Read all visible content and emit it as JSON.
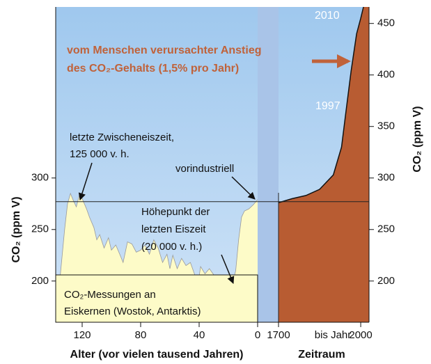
{
  "chart_data": {
    "type": "line",
    "xlabel": "Alter (vor vielen tausend Jahren)",
    "x2label": "Zeitraum",
    "x2_middle_label": "bis Jahr",
    "ylabel": "CO₂ (ppm V)",
    "y2label": "CO₂ (ppm V)",
    "xlim": [
      140,
      0
    ],
    "xticks": [
      120,
      80,
      40,
      0
    ],
    "x2lim": [
      1700,
      2010
    ],
    "x2ticks": [
      1700,
      2000
    ],
    "ylim": [
      160,
      466
    ],
    "yticks": [
      200,
      250,
      300
    ],
    "y2lim": [
      160,
      466
    ],
    "y2ticks": [
      200,
      250,
      300,
      350,
      400,
      450
    ],
    "reference_line": 277,
    "series": [
      {
        "color": "#fdfbc8",
        "x": [
          138,
          135,
          132,
          130,
          128,
          126,
          124,
          122,
          120,
          117,
          115,
          112,
          110,
          108,
          105,
          102,
          100,
          97,
          94,
          92,
          89,
          86,
          83,
          80,
          77,
          74,
          71,
          68,
          65,
          62,
          60,
          58,
          55,
          52,
          49,
          46,
          43,
          41,
          39,
          36,
          33,
          30,
          27,
          24,
          21,
          18,
          15,
          13,
          11,
          9,
          6,
          3,
          0
        ],
        "values": [
          190,
          205,
          250,
          275,
          285,
          278,
          272,
          283,
          280,
          270,
          262,
          252,
          240,
          245,
          232,
          242,
          230,
          235,
          225,
          218,
          238,
          236,
          228,
          230,
          235,
          226,
          240,
          232,
          218,
          226,
          212,
          225,
          212,
          222,
          215,
          218,
          206,
          195,
          214,
          207,
          212,
          206,
          200,
          205,
          196,
          193,
          210,
          240,
          262,
          268,
          270,
          274,
          279
        ]
      },
      {
        "color": "#b85c32",
        "axis": "y2",
        "xaxis": "x2",
        "x": [
          1700,
          1750,
          1800,
          1850,
          1900,
          1930,
          1945,
          1965,
          1985,
          2000,
          2010
        ],
        "values": [
          276,
          280,
          283,
          289,
          303,
          330,
          362,
          404,
          440,
          455,
          466
        ]
      }
    ],
    "annotations": {
      "interglacial": [
        "letzte Zwischeneiszeit,",
        "125 000 v. h."
      ],
      "preindustrial": "vorindustriell",
      "glacial_max": [
        "Höhepunkt der",
        "letzten Eiszeit",
        "(20 000 v. h.)"
      ],
      "ice_box": [
        "CO₂-Messungen an",
        "Eiskernen (Wostok, Antarktis)"
      ],
      "human": [
        "vom Menschen verursachter Anstieg",
        "des CO₂-Gehalts (1,5% pro Jahr)"
      ],
      "year_1997": "1997",
      "year_2010": "2010"
    }
  }
}
